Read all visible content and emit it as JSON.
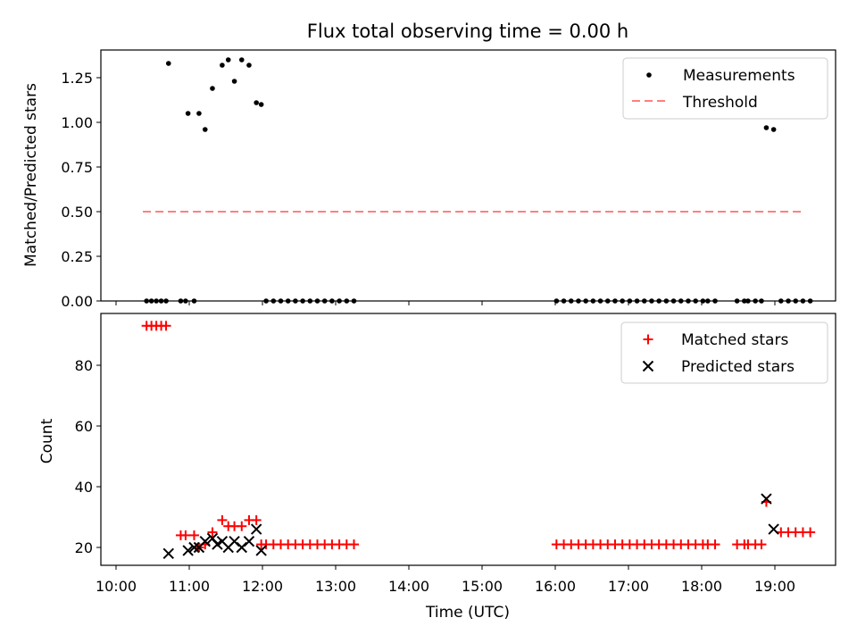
{
  "chart_data": [
    {
      "type": "scatter",
      "title": "Flux total observing time = 0.00 h",
      "xlabel": "",
      "ylabel": "Matched/Predicted stars",
      "ylim": [
        0,
        1.42
      ],
      "yticks": [
        "0.00",
        "0.25",
        "0.50",
        "0.75",
        "1.00",
        "1.25"
      ],
      "xlim": [
        "10:00",
        "19:50"
      ],
      "legend": {
        "placement": "top-right",
        "entries": [
          "Measurements",
          "Threshold"
        ]
      },
      "threshold": {
        "name": "Threshold",
        "value": 0.5,
        "x_start": "10:22",
        "x_end": "19:23",
        "color": "#ff7f7f"
      },
      "series": [
        {
          "name": "Measurements",
          "color": "#000000",
          "points": [
            [
              "10:25",
              0
            ],
            [
              "10:29",
              0
            ],
            [
              "10:33",
              0
            ],
            [
              "10:37",
              0
            ],
            [
              "10:41",
              0
            ],
            [
              "10:43",
              1.33
            ],
            [
              "10:53",
              0
            ],
            [
              "10:57",
              0
            ],
            [
              "10:59",
              1.05
            ],
            [
              "11:04",
              0
            ],
            [
              "11:08",
              1.05
            ],
            [
              "11:13",
              0.96
            ],
            [
              "11:19",
              1.19
            ],
            [
              "11:27",
              1.32
            ],
            [
              "11:32",
              1.35
            ],
            [
              "11:37",
              1.23
            ],
            [
              "11:43",
              1.35
            ],
            [
              "11:49",
              1.32
            ],
            [
              "11:55",
              1.11
            ],
            [
              "11:59",
              1.1
            ],
            [
              "12:03",
              0
            ],
            [
              "12:09",
              0
            ],
            [
              "12:15",
              0
            ],
            [
              "12:21",
              0
            ],
            [
              "12:27",
              0
            ],
            [
              "12:33",
              0
            ],
            [
              "12:39",
              0
            ],
            [
              "12:45",
              0
            ],
            [
              "12:51",
              0
            ],
            [
              "12:57",
              0
            ],
            [
              "13:03",
              0
            ],
            [
              "13:09",
              0
            ],
            [
              "13:15",
              0
            ],
            [
              "16:01",
              0
            ],
            [
              "16:07",
              0
            ],
            [
              "16:13",
              0
            ],
            [
              "16:19",
              0
            ],
            [
              "16:25",
              0
            ],
            [
              "16:31",
              0
            ],
            [
              "16:37",
              0
            ],
            [
              "16:43",
              0
            ],
            [
              "16:49",
              0
            ],
            [
              "16:55",
              0
            ],
            [
              "17:01",
              0
            ],
            [
              "17:07",
              0
            ],
            [
              "17:13",
              0
            ],
            [
              "17:19",
              0
            ],
            [
              "17:25",
              0
            ],
            [
              "17:31",
              0
            ],
            [
              "17:37",
              0
            ],
            [
              "17:43",
              0
            ],
            [
              "17:49",
              0
            ],
            [
              "17:55",
              0
            ],
            [
              "18:01",
              0
            ],
            [
              "18:05",
              0
            ],
            [
              "18:11",
              0
            ],
            [
              "18:29",
              0
            ],
            [
              "18:35",
              0
            ],
            [
              "18:38",
              0
            ],
            [
              "18:44",
              0
            ],
            [
              "18:49",
              0
            ],
            [
              "18:53",
              0.97
            ],
            [
              "18:59",
              0.96
            ],
            [
              "19:05",
              0
            ],
            [
              "19:11",
              0
            ],
            [
              "19:17",
              0
            ],
            [
              "19:23",
              0
            ],
            [
              "19:29",
              0
            ]
          ]
        }
      ]
    },
    {
      "type": "scatter",
      "title": "",
      "xlabel": "Time (UTC)",
      "ylabel": "Count",
      "ylim": [
        15,
        96
      ],
      "yticks": [
        "20",
        "40",
        "60",
        "80"
      ],
      "xlim": [
        "10:00",
        "19:50"
      ],
      "xticks": [
        "10:00",
        "11:00",
        "12:00",
        "13:00",
        "14:00",
        "15:00",
        "16:00",
        "17:00",
        "18:00",
        "19:00"
      ],
      "legend": {
        "placement": "top-right",
        "entries": [
          "Matched stars",
          "Predicted stars"
        ]
      },
      "series": [
        {
          "name": "Matched stars",
          "marker": "plus",
          "color": "#ff0000",
          "points": [
            [
              "10:25",
              93
            ],
            [
              "10:29",
              93
            ],
            [
              "10:33",
              93
            ],
            [
              "10:37",
              93
            ],
            [
              "10:41",
              93
            ],
            [
              "10:53",
              24
            ],
            [
              "10:57",
              24
            ],
            [
              "11:04",
              24
            ],
            [
              "11:08",
              20
            ],
            [
              "11:13",
              21
            ],
            [
              "11:19",
              25
            ],
            [
              "11:27",
              29
            ],
            [
              "11:32",
              27
            ],
            [
              "11:37",
              27
            ],
            [
              "11:43",
              27
            ],
            [
              "11:49",
              29
            ],
            [
              "11:55",
              29
            ],
            [
              "11:59",
              21
            ],
            [
              "12:03",
              21
            ],
            [
              "12:09",
              21
            ],
            [
              "12:15",
              21
            ],
            [
              "12:21",
              21
            ],
            [
              "12:27",
              21
            ],
            [
              "12:33",
              21
            ],
            [
              "12:39",
              21
            ],
            [
              "12:45",
              21
            ],
            [
              "12:51",
              21
            ],
            [
              "12:57",
              21
            ],
            [
              "13:03",
              21
            ],
            [
              "13:09",
              21
            ],
            [
              "13:15",
              21
            ],
            [
              "16:01",
              21
            ],
            [
              "16:07",
              21
            ],
            [
              "16:13",
              21
            ],
            [
              "16:19",
              21
            ],
            [
              "16:25",
              21
            ],
            [
              "16:31",
              21
            ],
            [
              "16:37",
              21
            ],
            [
              "16:43",
              21
            ],
            [
              "16:49",
              21
            ],
            [
              "16:55",
              21
            ],
            [
              "17:01",
              21
            ],
            [
              "17:07",
              21
            ],
            [
              "17:13",
              21
            ],
            [
              "17:19",
              21
            ],
            [
              "17:25",
              21
            ],
            [
              "17:31",
              21
            ],
            [
              "17:37",
              21
            ],
            [
              "17:43",
              21
            ],
            [
              "17:49",
              21
            ],
            [
              "17:55",
              21
            ],
            [
              "18:01",
              21
            ],
            [
              "18:05",
              21
            ],
            [
              "18:11",
              21
            ],
            [
              "18:29",
              21
            ],
            [
              "18:35",
              21
            ],
            [
              "18:38",
              21
            ],
            [
              "18:44",
              21
            ],
            [
              "18:49",
              21
            ],
            [
              "18:53",
              35
            ],
            [
              "19:05",
              25
            ],
            [
              "19:11",
              25
            ],
            [
              "19:17",
              25
            ],
            [
              "19:23",
              25
            ],
            [
              "19:29",
              25
            ]
          ]
        },
        {
          "name": "Predicted stars",
          "marker": "x",
          "color": "#000000",
          "points": [
            [
              "10:43",
              18
            ],
            [
              "10:59",
              19
            ],
            [
              "11:04",
              20
            ],
            [
              "11:08",
              20
            ],
            [
              "11:13",
              22
            ],
            [
              "11:19",
              23
            ],
            [
              "11:23",
              21
            ],
            [
              "11:27",
              22
            ],
            [
              "11:32",
              20
            ],
            [
              "11:37",
              22
            ],
            [
              "11:43",
              20
            ],
            [
              "11:49",
              22
            ],
            [
              "11:55",
              26
            ],
            [
              "11:59",
              19
            ],
            [
              "18:53",
              36
            ],
            [
              "18:59",
              26
            ]
          ]
        }
      ]
    }
  ]
}
